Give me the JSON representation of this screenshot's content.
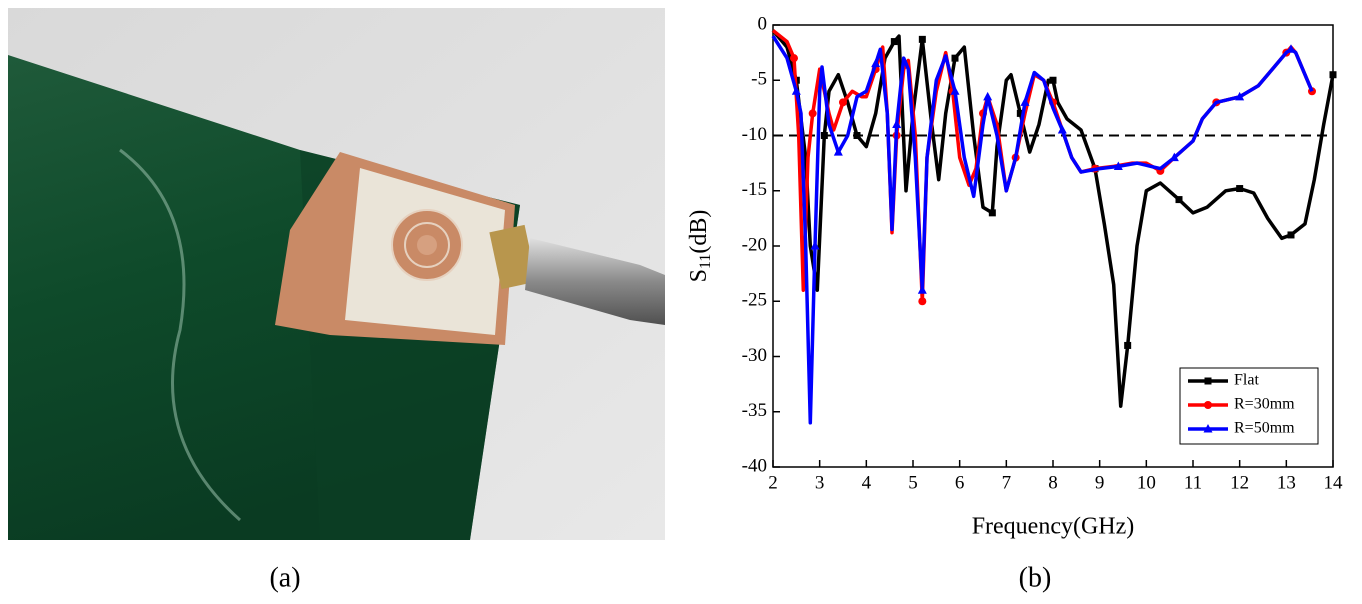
{
  "captions": [
    "(a)",
    "(b)"
  ],
  "chart_data": {
    "type": "line",
    "x_label": "Frequency(GHz)",
    "y_label_parts": [
      "S",
      "11",
      "(dB)"
    ],
    "xlim": [
      2,
      14
    ],
    "xticks": [
      2,
      3,
      4,
      5,
      6,
      7,
      8,
      9,
      10,
      11,
      12,
      13,
      14
    ],
    "ylim": [
      -40,
      0
    ],
    "yticks": [
      0,
      -5,
      -10,
      -15,
      -20,
      -25,
      -30,
      -35,
      -40
    ],
    "hline": -10,
    "legend": "lower right",
    "series": [
      {
        "name": "Flat",
        "color": "#000000",
        "marker": "square",
        "x": [
          2,
          2.3,
          2.5,
          2.7,
          2.8,
          2.95,
          3.1,
          3.2,
          3.4,
          3.6,
          3.8,
          4.0,
          4.2,
          4.4,
          4.6,
          4.7,
          4.85,
          5.0,
          5.2,
          5.4,
          5.55,
          5.7,
          5.9,
          6.1,
          6.3,
          6.5,
          6.7,
          6.8,
          7.0,
          7.1,
          7.3,
          7.5,
          7.7,
          7.9,
          8.0,
          8.1,
          8.3,
          8.6,
          8.9,
          9.1,
          9.3,
          9.45,
          9.6,
          9.8,
          10.0,
          10.3,
          10.7,
          11.0,
          11.3,
          11.7,
          12.0,
          12.3,
          12.6,
          12.9,
          13.1,
          13.4,
          13.6,
          13.8,
          14.0
        ],
        "values": [
          -0.5,
          -2,
          -5,
          -12,
          -20,
          -24,
          -10,
          -6,
          -4.5,
          -7,
          -10,
          -11,
          -8,
          -3,
          -1.5,
          -1,
          -15,
          -8,
          -1.3,
          -9,
          -14,
          -8,
          -3,
          -2,
          -10,
          -16.5,
          -17,
          -11,
          -5,
          -4.5,
          -8,
          -11.5,
          -9,
          -5,
          -5,
          -7,
          -8.5,
          -9.5,
          -13,
          -18,
          -23.5,
          -34.5,
          -29,
          -20,
          -15,
          -14.3,
          -15.8,
          -17,
          -16.5,
          -15,
          -14.8,
          -15.2,
          -17.5,
          -19.3,
          -19,
          -18,
          -14,
          -9,
          -4.5
        ]
      },
      {
        "name": "R=30mm",
        "color": "#ff0000",
        "marker": "circle",
        "x": [
          2,
          2.3,
          2.45,
          2.55,
          2.65,
          2.75,
          2.85,
          3.0,
          3.2,
          3.3,
          3.5,
          3.7,
          3.9,
          4.0,
          4.2,
          4.35,
          4.45,
          4.55,
          4.65,
          4.8,
          4.9,
          5.05,
          5.2,
          5.3,
          5.5,
          5.7,
          5.85,
          6.0,
          6.2,
          6.35,
          6.5,
          6.6,
          6.8,
          7.0,
          7.2,
          7.4,
          7.6,
          7.8,
          8.0,
          8.2,
          8.4,
          8.6,
          8.9,
          9.3,
          9.7,
          10.0,
          10.3,
          10.6,
          11.0,
          11.2,
          11.5,
          12.0,
          12.4,
          12.7,
          13.0,
          13.1,
          13.2,
          13.4,
          13.55
        ],
        "values": [
          -0.5,
          -1.5,
          -3,
          -10,
          -24,
          -12,
          -8,
          -4,
          -8,
          -9.5,
          -7,
          -6,
          -6.5,
          -6.5,
          -4,
          -2,
          -8,
          -18.8,
          -10,
          -4,
          -3.2,
          -10,
          -25,
          -12,
          -6,
          -2.5,
          -6,
          -12,
          -14.5,
          -13,
          -8,
          -6.5,
          -9,
          -15,
          -12,
          -8,
          -4.5,
          -5,
          -7,
          -9.5,
          -12,
          -13.3,
          -13,
          -12.8,
          -12.5,
          -12.5,
          -13.2,
          -12,
          -10.5,
          -8.5,
          -7,
          -6.5,
          -5.5,
          -4,
          -2.5,
          -2,
          -2.5,
          -4.5,
          -6
        ]
      },
      {
        "name": "R=50mm",
        "color": "#0000ff",
        "marker": "triangle",
        "x": [
          2,
          2.3,
          2.5,
          2.6,
          2.7,
          2.8,
          2.9,
          3.0,
          3.05,
          3.2,
          3.4,
          3.6,
          3.8,
          4.0,
          4.2,
          4.3,
          4.45,
          4.55,
          4.65,
          4.8,
          4.9,
          5.05,
          5.2,
          5.3,
          5.5,
          5.7,
          5.9,
          6.1,
          6.3,
          6.5,
          6.6,
          6.8,
          7.0,
          7.2,
          7.4,
          7.6,
          7.8,
          8.0,
          8.2,
          8.4,
          8.6,
          9.0,
          9.4,
          9.8,
          10.1,
          10.3,
          10.6,
          11.0,
          11.2,
          11.5,
          12.0,
          12.4,
          12.7,
          13.0,
          13.1,
          13.2,
          13.4,
          13.55
        ],
        "values": [
          -1,
          -3,
          -6,
          -8,
          -20,
          -36,
          -20,
          -6,
          -3.8,
          -9,
          -11.5,
          -10,
          -6.5,
          -6,
          -3.5,
          -2.2,
          -8,
          -18.5,
          -9,
          -3,
          -4,
          -12,
          -24,
          -12,
          -5,
          -2.8,
          -6,
          -12,
          -15.5,
          -9,
          -6.5,
          -10,
          -15,
          -12,
          -7,
          -4.3,
          -5,
          -7.5,
          -9.5,
          -12,
          -13.3,
          -13,
          -12.8,
          -12.5,
          -12.8,
          -13,
          -12,
          -10.5,
          -8.5,
          -7,
          -6.5,
          -5.5,
          -4,
          -2.5,
          -2.2,
          -2.5,
          -4.5,
          -6
        ]
      }
    ]
  }
}
